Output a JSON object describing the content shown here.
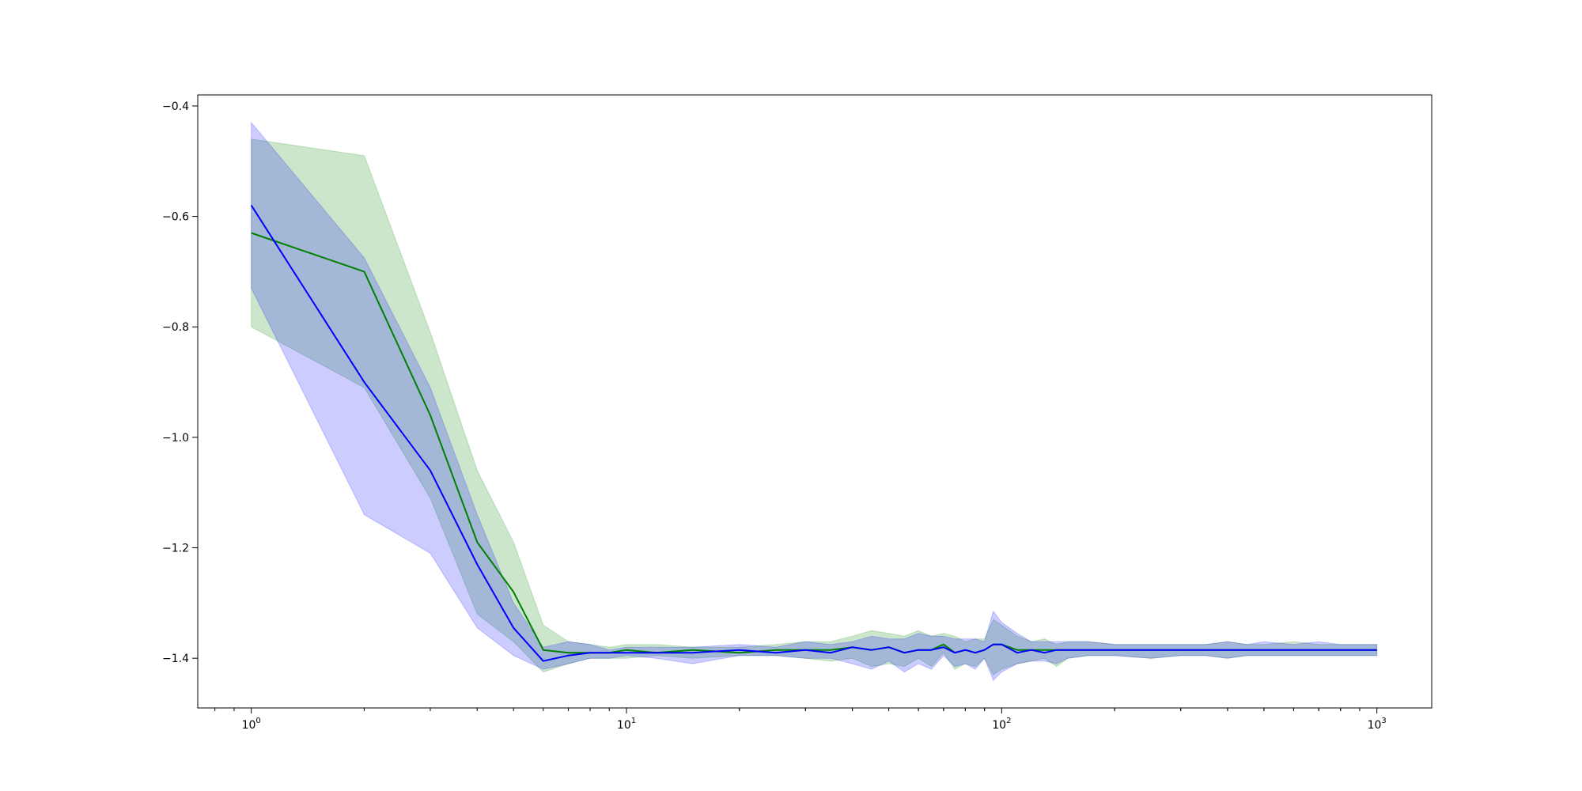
{
  "chart_data": {
    "type": "line",
    "title": "",
    "xlabel": "",
    "ylabel": "",
    "xscale": "log",
    "xlim": [
      0.72,
      1400
    ],
    "ylim": [
      -1.49,
      -0.38
    ],
    "grid": false,
    "legend": "none",
    "x_ticks": [
      {
        "base": "10",
        "exp": "0",
        "value": 1
      },
      {
        "base": "10",
        "exp": "1",
        "value": 10
      },
      {
        "base": "10",
        "exp": "2",
        "value": 100
      },
      {
        "base": "10",
        "exp": "3",
        "value": 1000
      }
    ],
    "y_ticks": [
      {
        "label": "−0.4",
        "value": -0.4
      },
      {
        "label": "−0.6",
        "value": -0.6
      },
      {
        "label": "−0.8",
        "value": -0.8
      },
      {
        "label": "−1.0",
        "value": -1.0
      },
      {
        "label": "−1.2",
        "value": -1.2
      },
      {
        "label": "−1.4",
        "value": -1.4
      }
    ],
    "series": [
      {
        "color": "#008000",
        "band_color": "#008000",
        "x": [
          1,
          2,
          3,
          4,
          5,
          6,
          7,
          8,
          9,
          10,
          12,
          15,
          20,
          25,
          30,
          35,
          40,
          45,
          50,
          55,
          60,
          65,
          70,
          75,
          80,
          85,
          90,
          95,
          100,
          110,
          120,
          130,
          140,
          150,
          170,
          200,
          250,
          300,
          350,
          400,
          450,
          500,
          600,
          700,
          800,
          900,
          1000
        ],
        "mean": [
          -0.63,
          -0.7,
          -0.96,
          -1.19,
          -1.28,
          -1.385,
          -1.39,
          -1.39,
          -1.39,
          -1.385,
          -1.39,
          -1.385,
          -1.39,
          -1.385,
          -1.385,
          -1.385,
          -1.38,
          -1.385,
          -1.38,
          -1.39,
          -1.385,
          -1.385,
          -1.375,
          -1.39,
          -1.385,
          -1.39,
          -1.385,
          -1.375,
          -1.375,
          -1.385,
          -1.385,
          -1.385,
          -1.385,
          -1.385,
          -1.385,
          -1.385,
          -1.385,
          -1.385,
          -1.385,
          -1.385,
          -1.385,
          -1.385,
          -1.385,
          -1.385,
          -1.385,
          -1.385,
          -1.385
        ],
        "lower": [
          -0.8,
          -0.91,
          -1.11,
          -1.32,
          -1.37,
          -1.425,
          -1.41,
          -1.4,
          -1.4,
          -1.4,
          -1.395,
          -1.4,
          -1.395,
          -1.395,
          -1.4,
          -1.405,
          -1.4,
          -1.415,
          -1.41,
          -1.415,
          -1.4,
          -1.415,
          -1.39,
          -1.42,
          -1.41,
          -1.415,
          -1.4,
          -1.43,
          -1.42,
          -1.41,
          -1.405,
          -1.4,
          -1.415,
          -1.4,
          -1.395,
          -1.395,
          -1.4,
          -1.395,
          -1.395,
          -1.4,
          -1.395,
          -1.395,
          -1.395,
          -1.395,
          -1.395,
          -1.395,
          -1.395
        ],
        "upper": [
          -0.46,
          -0.49,
          -0.81,
          -1.06,
          -1.19,
          -1.34,
          -1.37,
          -1.375,
          -1.38,
          -1.375,
          -1.375,
          -1.38,
          -1.38,
          -1.375,
          -1.37,
          -1.37,
          -1.36,
          -1.35,
          -1.355,
          -1.36,
          -1.35,
          -1.36,
          -1.355,
          -1.36,
          -1.37,
          -1.365,
          -1.365,
          -1.33,
          -1.34,
          -1.36,
          -1.37,
          -1.365,
          -1.375,
          -1.37,
          -1.37,
          -1.375,
          -1.375,
          -1.375,
          -1.375,
          -1.37,
          -1.375,
          -1.375,
          -1.37,
          -1.375,
          -1.375,
          -1.375,
          -1.375
        ]
      },
      {
        "color": "#0000ff",
        "band_color": "#0000ff",
        "x": [
          1,
          2,
          3,
          4,
          5,
          6,
          7,
          8,
          9,
          10,
          12,
          15,
          20,
          25,
          30,
          35,
          40,
          45,
          50,
          55,
          60,
          65,
          70,
          75,
          80,
          85,
          90,
          95,
          100,
          110,
          120,
          130,
          140,
          150,
          170,
          200,
          250,
          300,
          350,
          400,
          450,
          500,
          600,
          700,
          800,
          900,
          1000
        ],
        "mean": [
          -0.58,
          -0.9,
          -1.06,
          -1.23,
          -1.345,
          -1.405,
          -1.395,
          -1.39,
          -1.39,
          -1.39,
          -1.39,
          -1.39,
          -1.385,
          -1.39,
          -1.385,
          -1.39,
          -1.38,
          -1.385,
          -1.38,
          -1.39,
          -1.385,
          -1.385,
          -1.38,
          -1.39,
          -1.385,
          -1.39,
          -1.385,
          -1.375,
          -1.375,
          -1.39,
          -1.385,
          -1.39,
          -1.385,
          -1.385,
          -1.385,
          -1.385,
          -1.385,
          -1.385,
          -1.385,
          -1.385,
          -1.385,
          -1.385,
          -1.385,
          -1.385,
          -1.385,
          -1.385,
          -1.385
        ],
        "lower": [
          -0.73,
          -1.14,
          -1.21,
          -1.345,
          -1.395,
          -1.42,
          -1.41,
          -1.4,
          -1.4,
          -1.395,
          -1.4,
          -1.41,
          -1.395,
          -1.395,
          -1.4,
          -1.4,
          -1.41,
          -1.42,
          -1.405,
          -1.425,
          -1.41,
          -1.42,
          -1.395,
          -1.415,
          -1.41,
          -1.42,
          -1.4,
          -1.44,
          -1.425,
          -1.41,
          -1.405,
          -1.405,
          -1.41,
          -1.4,
          -1.395,
          -1.395,
          -1.4,
          -1.395,
          -1.395,
          -1.4,
          -1.395,
          -1.395,
          -1.395,
          -1.395,
          -1.395,
          -1.395,
          -1.395
        ],
        "upper": [
          -0.43,
          -0.675,
          -0.91,
          -1.14,
          -1.3,
          -1.38,
          -1.37,
          -1.375,
          -1.385,
          -1.38,
          -1.38,
          -1.38,
          -1.375,
          -1.38,
          -1.37,
          -1.375,
          -1.37,
          -1.36,
          -1.365,
          -1.365,
          -1.355,
          -1.36,
          -1.36,
          -1.365,
          -1.365,
          -1.365,
          -1.37,
          -1.315,
          -1.335,
          -1.355,
          -1.37,
          -1.37,
          -1.37,
          -1.37,
          -1.37,
          -1.375,
          -1.375,
          -1.375,
          -1.375,
          -1.37,
          -1.375,
          -1.37,
          -1.375,
          -1.37,
          -1.375,
          -1.375,
          -1.375
        ]
      }
    ]
  }
}
